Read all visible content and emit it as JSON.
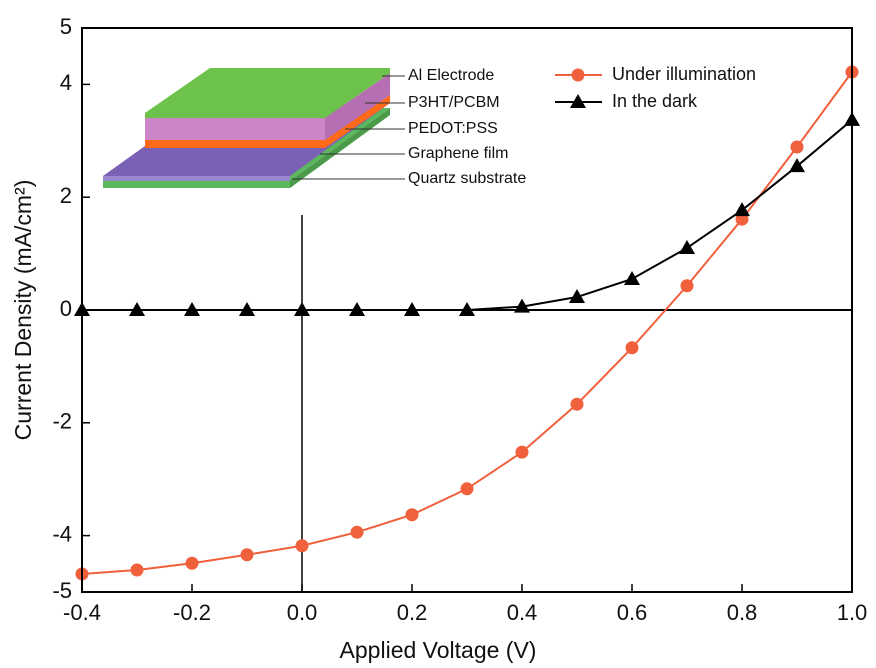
{
  "chart_data": {
    "type": "line",
    "x_label": "Applied Voltage (V)",
    "y_label": "Current Density (mA/cm²)",
    "x": [
      -0.4,
      -0.3,
      -0.2,
      -0.1,
      0.0,
      0.1,
      0.2,
      0.3,
      0.4,
      0.5,
      0.6,
      0.7,
      0.8,
      0.9,
      1.0
    ],
    "series": [
      {
        "name": "Under illumination",
        "color": "#f0603c",
        "marker": "circle",
        "values": [
          -4.68,
          -4.61,
          -4.49,
          -4.34,
          -4.18,
          -3.94,
          -3.63,
          -3.17,
          -2.52,
          -1.67,
          -0.67,
          0.43,
          1.61,
          2.89,
          4.22
        ]
      },
      {
        "name": "In the dark",
        "color": "#000000",
        "marker": "triangle",
        "values": [
          0,
          0,
          0,
          0,
          0,
          0,
          0,
          0,
          0.06,
          0.23,
          0.55,
          1.1,
          1.77,
          2.55,
          3.37
        ]
      }
    ],
    "xlim": [
      -0.4,
      1.0
    ],
    "ylim": [
      -5,
      5
    ],
    "xticks": [
      -0.4,
      -0.2,
      {
        "value": 0,
        "label": "0.0"
      },
      0.2,
      0.4,
      0.6,
      0.8,
      {
        "value": 1,
        "label": "1.0"
      }
    ],
    "yticks": [
      -5,
      -4,
      -2,
      0,
      2,
      4,
      5
    ],
    "legend": "upper right",
    "annotations": [
      "Al Electrode",
      "P3HT/PCBM",
      "PEDOT:PSS",
      "Graphene film",
      "Quartz substrate"
    ]
  }
}
